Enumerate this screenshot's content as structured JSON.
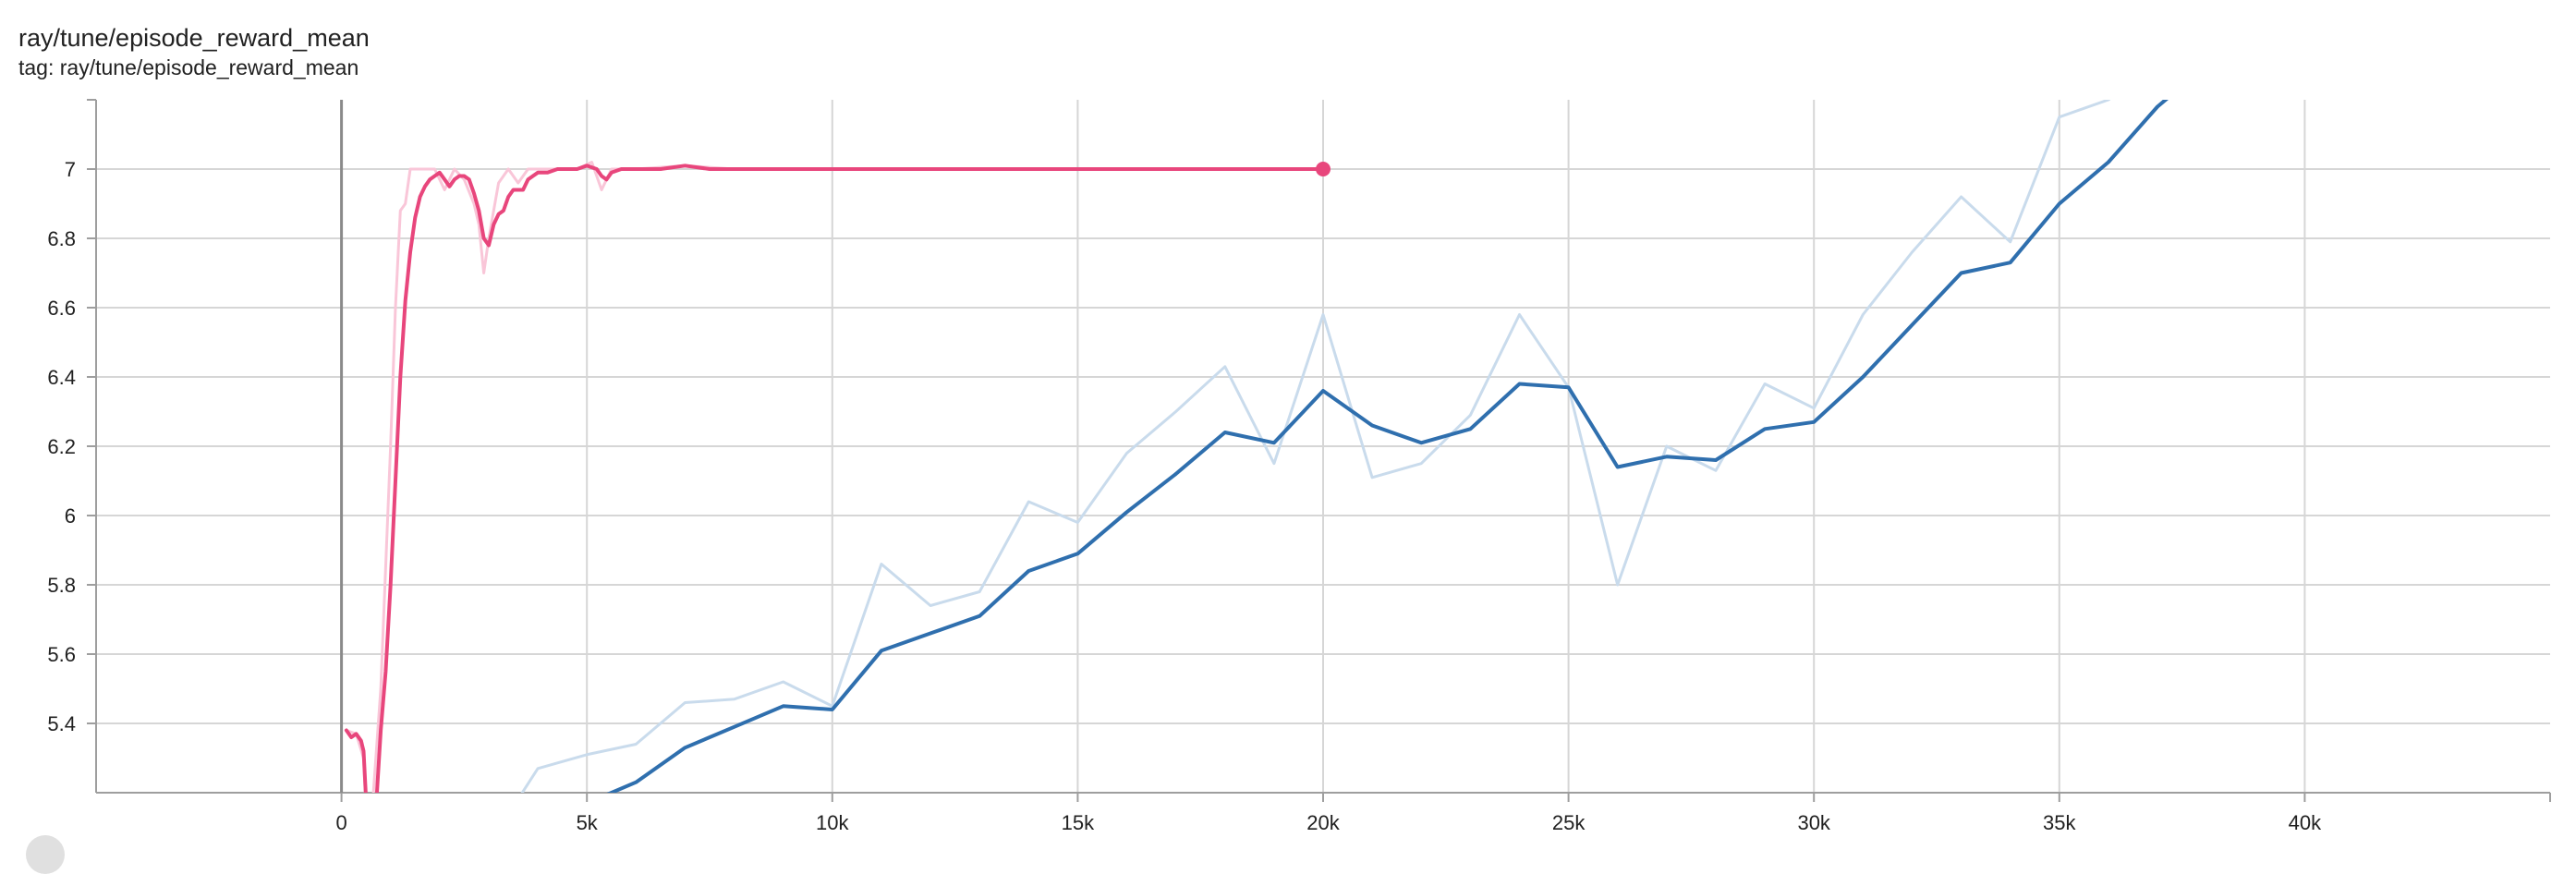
{
  "header": {
    "title": "ray/tune/episode_reward_mean",
    "tag": "tag: ray/tune/episode_reward_mean"
  },
  "chart_data": {
    "type": "line",
    "title": "ray/tune/episode_reward_mean",
    "xlabel": "",
    "ylabel": "",
    "xlim": [
      -5000,
      45000
    ],
    "ylim": [
      5.2,
      7.2
    ],
    "grid": true,
    "x_ticks": [
      0,
      5000,
      10000,
      15000,
      20000,
      25000,
      30000,
      35000,
      40000
    ],
    "x_tick_labels": [
      "0",
      "5k",
      "10k",
      "15k",
      "20k",
      "25k",
      "30k",
      "35k",
      "40k"
    ],
    "y_ticks": [
      5.4,
      5.6,
      5.8,
      6.0,
      6.2,
      6.4,
      6.6,
      6.8,
      7.0
    ],
    "y_tick_labels": [
      "5.4",
      "5.6",
      "5.8",
      "6",
      "6.2",
      "6.4",
      "6.6",
      "6.8",
      "7"
    ],
    "series": [
      {
        "color": "#e8467c",
        "raw_color": "#f9c6d8",
        "end_marker": true,
        "smoothed": [
          [
            100,
            5.38
          ],
          [
            200,
            5.36
          ],
          [
            300,
            5.37
          ],
          [
            400,
            5.35
          ],
          [
            450,
            5.32
          ],
          [
            500,
            5.18
          ],
          [
            550,
            5.0
          ],
          [
            700,
            5.15
          ],
          [
            800,
            5.38
          ],
          [
            900,
            5.55
          ],
          [
            1000,
            5.8
          ],
          [
            1100,
            6.1
          ],
          [
            1200,
            6.4
          ],
          [
            1300,
            6.62
          ],
          [
            1400,
            6.76
          ],
          [
            1500,
            6.86
          ],
          [
            1600,
            6.92
          ],
          [
            1700,
            6.95
          ],
          [
            1800,
            6.97
          ],
          [
            1900,
            6.98
          ],
          [
            2000,
            6.99
          ],
          [
            2100,
            6.97
          ],
          [
            2200,
            6.95
          ],
          [
            2300,
            6.97
          ],
          [
            2400,
            6.98
          ],
          [
            2500,
            6.98
          ],
          [
            2600,
            6.97
          ],
          [
            2700,
            6.93
          ],
          [
            2800,
            6.88
          ],
          [
            2900,
            6.8
          ],
          [
            3000,
            6.78
          ],
          [
            3100,
            6.84
          ],
          [
            3200,
            6.87
          ],
          [
            3300,
            6.88
          ],
          [
            3400,
            6.92
          ],
          [
            3500,
            6.94
          ],
          [
            3600,
            6.94
          ],
          [
            3700,
            6.94
          ],
          [
            3800,
            6.97
          ],
          [
            3900,
            6.98
          ],
          [
            4000,
            6.99
          ],
          [
            4200,
            6.99
          ],
          [
            4400,
            7.0
          ],
          [
            4600,
            7.0
          ],
          [
            4800,
            7.0
          ],
          [
            5000,
            7.01
          ],
          [
            5200,
            7.0
          ],
          [
            5300,
            6.98
          ],
          [
            5400,
            6.97
          ],
          [
            5500,
            6.99
          ],
          [
            5700,
            7.0
          ],
          [
            6000,
            7.0
          ],
          [
            6500,
            7.0
          ],
          [
            7000,
            7.01
          ],
          [
            7500,
            7.0
          ],
          [
            8000,
            7.0
          ],
          [
            9000,
            7.0
          ],
          [
            10000,
            7.0
          ],
          [
            11000,
            7.0
          ],
          [
            12000,
            7.0
          ],
          [
            13000,
            7.0
          ],
          [
            14000,
            7.0
          ],
          [
            15000,
            7.0
          ],
          [
            16000,
            7.0
          ],
          [
            17000,
            7.0
          ],
          [
            18000,
            7.0
          ],
          [
            19000,
            7.0
          ],
          [
            20000,
            7.0
          ]
        ],
        "raw": [
          [
            100,
            5.38
          ],
          [
            300,
            5.37
          ],
          [
            450,
            5.3
          ],
          [
            550,
            5.0
          ],
          [
            800,
            5.5
          ],
          [
            1000,
            6.2
          ],
          [
            1100,
            6.6
          ],
          [
            1200,
            6.88
          ],
          [
            1300,
            6.9
          ],
          [
            1400,
            7.0
          ],
          [
            1500,
            7.0
          ],
          [
            1700,
            7.0
          ],
          [
            1900,
            7.0
          ],
          [
            2100,
            6.94
          ],
          [
            2300,
            7.0
          ],
          [
            2500,
            6.97
          ],
          [
            2700,
            6.9
          ],
          [
            2800,
            6.84
          ],
          [
            2900,
            6.7
          ],
          [
            3000,
            6.8
          ],
          [
            3200,
            6.96
          ],
          [
            3400,
            7.0
          ],
          [
            3600,
            6.96
          ],
          [
            3800,
            7.0
          ],
          [
            4000,
            7.0
          ],
          [
            4400,
            7.0
          ],
          [
            4800,
            7.0
          ],
          [
            5100,
            7.02
          ],
          [
            5300,
            6.94
          ],
          [
            5500,
            7.0
          ],
          [
            6000,
            7.0
          ],
          [
            7000,
            7.01
          ],
          [
            8000,
            7.0
          ],
          [
            9000,
            7.0
          ],
          [
            10000,
            7.0
          ],
          [
            11000,
            7.0
          ],
          [
            12000,
            7.0
          ],
          [
            13000,
            7.0
          ],
          [
            14000,
            7.0
          ],
          [
            15000,
            7.0
          ],
          [
            16000,
            7.0
          ],
          [
            17000,
            7.0
          ],
          [
            18000,
            7.0
          ],
          [
            19000,
            7.0
          ],
          [
            20000,
            7.0
          ]
        ]
      },
      {
        "color": "#2f6fae",
        "raw_color": "#c9dbec",
        "end_marker": false,
        "smoothed": [
          [
            5000,
            5.17
          ],
          [
            6000,
            5.23
          ],
          [
            7000,
            5.33
          ],
          [
            8000,
            5.39
          ],
          [
            9000,
            5.45
          ],
          [
            10000,
            5.44
          ],
          [
            11000,
            5.61
          ],
          [
            12000,
            5.66
          ],
          [
            13000,
            5.71
          ],
          [
            14000,
            5.84
          ],
          [
            15000,
            5.89
          ],
          [
            16000,
            6.01
          ],
          [
            17000,
            6.12
          ],
          [
            18000,
            6.24
          ],
          [
            19000,
            6.21
          ],
          [
            20000,
            6.36
          ],
          [
            21000,
            6.26
          ],
          [
            22000,
            6.21
          ],
          [
            23000,
            6.25
          ],
          [
            24000,
            6.38
          ],
          [
            25000,
            6.37
          ],
          [
            26000,
            6.14
          ],
          [
            27000,
            6.17
          ],
          [
            28000,
            6.16
          ],
          [
            29000,
            6.25
          ],
          [
            30000,
            6.27
          ],
          [
            31000,
            6.4
          ],
          [
            32000,
            6.55
          ],
          [
            33000,
            6.7
          ],
          [
            34000,
            6.73
          ],
          [
            35000,
            6.9
          ],
          [
            36000,
            7.02
          ],
          [
            37000,
            7.18
          ],
          [
            38000,
            7.3
          ]
        ],
        "raw": [
          [
            3000,
            5.05
          ],
          [
            4000,
            5.27
          ],
          [
            5000,
            5.31
          ],
          [
            6000,
            5.34
          ],
          [
            7000,
            5.46
          ],
          [
            8000,
            5.47
          ],
          [
            9000,
            5.52
          ],
          [
            10000,
            5.45
          ],
          [
            11000,
            5.86
          ],
          [
            12000,
            5.74
          ],
          [
            13000,
            5.78
          ],
          [
            14000,
            6.04
          ],
          [
            15000,
            5.98
          ],
          [
            16000,
            6.18
          ],
          [
            17000,
            6.3
          ],
          [
            18000,
            6.43
          ],
          [
            19000,
            6.15
          ],
          [
            20000,
            6.58
          ],
          [
            21000,
            6.11
          ],
          [
            22000,
            6.15
          ],
          [
            23000,
            6.29
          ],
          [
            24000,
            6.58
          ],
          [
            25000,
            6.37
          ],
          [
            26000,
            5.8
          ],
          [
            27000,
            6.2
          ],
          [
            28000,
            6.13
          ],
          [
            29000,
            6.38
          ],
          [
            30000,
            6.31
          ],
          [
            31000,
            6.58
          ],
          [
            32000,
            6.76
          ],
          [
            33000,
            6.92
          ],
          [
            34000,
            6.79
          ],
          [
            35000,
            7.15
          ],
          [
            36000,
            7.2
          ],
          [
            37000,
            7.3
          ]
        ]
      }
    ]
  }
}
